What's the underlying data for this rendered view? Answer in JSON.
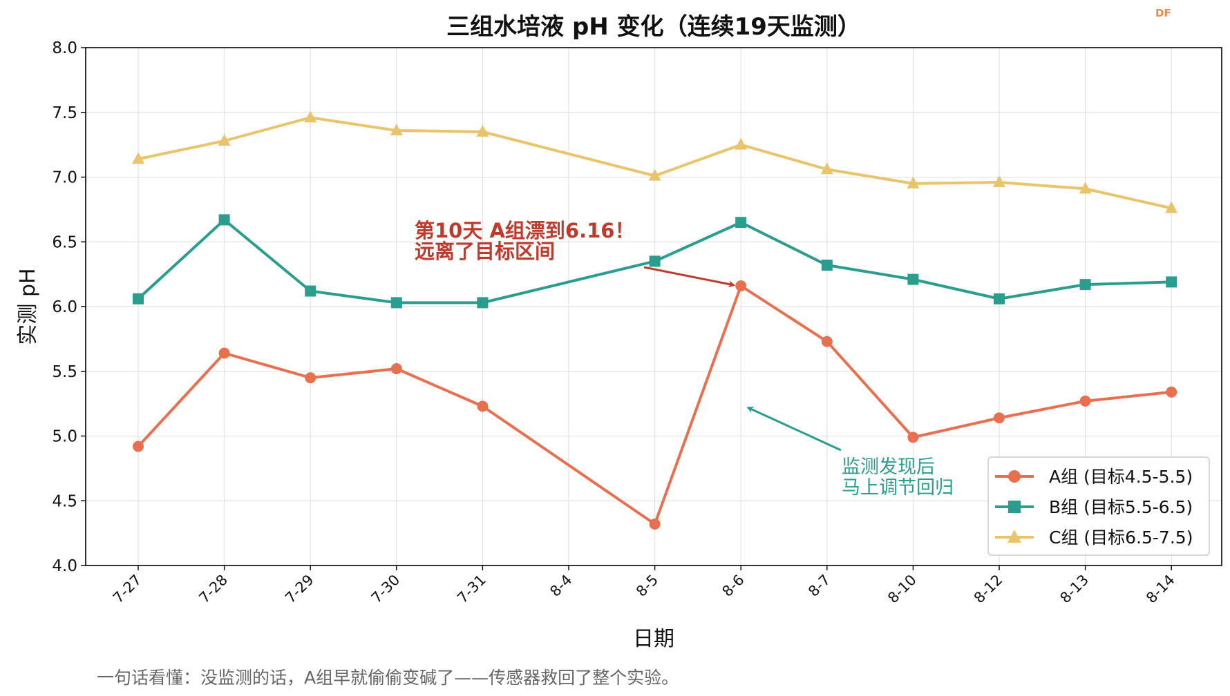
{
  "watermark": "DF",
  "caption": "一句话看懂：没监测的话，A组早就偷偷变碱了——传感器救回了整个实验。",
  "chart_data": {
    "type": "line",
    "title": "三组水培液 pH 变化（连续19天监测）",
    "xlabel": "日期",
    "ylabel": "实测 pH",
    "categories": [
      "7-27",
      "7-28",
      "7-29",
      "7-30",
      "7-31",
      "8-4",
      "8-5",
      "8-6",
      "8-7",
      "8-10",
      "8-12",
      "8-13",
      "8-14"
    ],
    "ylim": [
      4.0,
      8.0
    ],
    "yticks": [
      "4.0",
      "4.5",
      "5.0",
      "5.5",
      "6.0",
      "6.5",
      "7.0",
      "7.5",
      "8.0"
    ],
    "grid": true,
    "legend_position": "lower-right",
    "series": [
      {
        "name": "A组 (目标4.5-5.5)",
        "color": "#e8704f",
        "marker": "circle",
        "x": [
          "7-27",
          "7-28",
          "7-29",
          "7-30",
          "7-31",
          "8-5",
          "8-6",
          "8-7",
          "8-10",
          "8-12",
          "8-13",
          "8-14"
        ],
        "values": [
          4.92,
          5.64,
          5.45,
          5.52,
          5.23,
          4.32,
          6.16,
          5.73,
          4.99,
          5.14,
          5.27,
          5.34
        ]
      },
      {
        "name": "B组 (目标5.5-6.5)",
        "color": "#2a9d8f",
        "marker": "square",
        "x": [
          "7-27",
          "7-28",
          "7-29",
          "7-30",
          "7-31",
          "8-5",
          "8-6",
          "8-7",
          "8-10",
          "8-12",
          "8-13",
          "8-14"
        ],
        "values": [
          6.06,
          6.67,
          6.12,
          6.03,
          6.03,
          6.35,
          6.65,
          6.32,
          6.21,
          6.06,
          6.17,
          6.19
        ]
      },
      {
        "name": "C组 (目标6.5-7.5)",
        "color": "#e9c46a",
        "marker": "triangle",
        "x": [
          "7-27",
          "7-28",
          "7-29",
          "7-30",
          "7-31",
          "8-5",
          "8-6",
          "8-7",
          "8-10",
          "8-12",
          "8-13",
          "8-14"
        ],
        "values": [
          7.14,
          7.28,
          7.46,
          7.36,
          7.35,
          7.01,
          7.25,
          7.06,
          6.95,
          6.96,
          6.91,
          6.76
        ]
      }
    ],
    "annotations": [
      {
        "lines": [
          "第10天 A组漂到6.16！",
          "远离了目标区间"
        ],
        "color": "#c0392b",
        "target_x": "8-6",
        "target_y": 6.16
      },
      {
        "lines": [
          "监测发现后",
          "马上调节回归"
        ],
        "color": "#2a9d8f",
        "target_x": "8-6",
        "target_y": 5.22
      }
    ]
  }
}
